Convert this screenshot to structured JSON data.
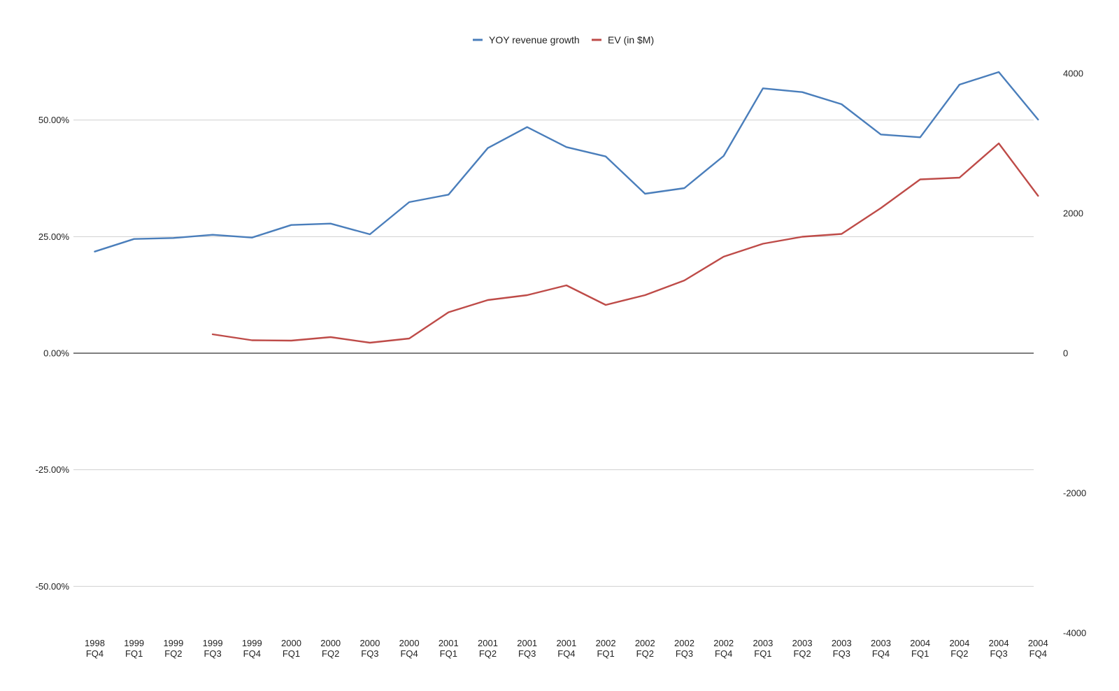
{
  "chart_data": {
    "type": "line",
    "title": "",
    "xlabel": "",
    "ylabel": "",
    "categories": [
      [
        "1998",
        "FQ4"
      ],
      [
        "1999",
        "FQ1"
      ],
      [
        "1999",
        "FQ2"
      ],
      [
        "1999",
        "FQ3"
      ],
      [
        "1999",
        "FQ4"
      ],
      [
        "2000",
        "FQ1"
      ],
      [
        "2000",
        "FQ2"
      ],
      [
        "2000",
        "FQ3"
      ],
      [
        "2000",
        "FQ4"
      ],
      [
        "2001",
        "FQ1"
      ],
      [
        "2001",
        "FQ2"
      ],
      [
        "2001",
        "FQ3"
      ],
      [
        "2001",
        "FQ4"
      ],
      [
        "2002",
        "FQ1"
      ],
      [
        "2002",
        "FQ2"
      ],
      [
        "2002",
        "FQ3"
      ],
      [
        "2002",
        "FQ4"
      ],
      [
        "2003",
        "FQ1"
      ],
      [
        "2003",
        "FQ2"
      ],
      [
        "2003",
        "FQ3"
      ],
      [
        "2003",
        "FQ4"
      ],
      [
        "2004",
        "FQ1"
      ],
      [
        "2004",
        "FQ2"
      ],
      [
        "2004",
        "FQ3"
      ],
      [
        "2004",
        "FQ4"
      ]
    ],
    "y_left": {
      "min": -0.6,
      "max": 0.6,
      "ticks": [
        -0.5,
        -0.25,
        0,
        0.25,
        0.5
      ],
      "tick_labels": [
        "-50.00%",
        "-25.00%",
        "0.00%",
        "25.00%",
        "50.00%"
      ],
      "gridlines": true
    },
    "y_right": {
      "min": -4000,
      "max": 4000,
      "ticks": [
        -4000,
        -2000,
        0,
        2000,
        4000
      ],
      "tick_labels": [
        "-4000",
        "-2000",
        "0",
        "2000",
        "4000"
      ]
    },
    "legend_position": "top-center",
    "series": [
      {
        "name": "YOY revenue growth",
        "axis": "left",
        "color": "#4a7ebb",
        "values": [
          0.218,
          0.245,
          0.247,
          0.254,
          0.248,
          0.275,
          0.278,
          0.255,
          0.324,
          0.34,
          0.44,
          0.485,
          0.442,
          0.422,
          0.342,
          0.354,
          0.423,
          0.568,
          0.56,
          0.534,
          0.469,
          0.463,
          0.576,
          0.603,
          0.501
        ]
      },
      {
        "name": "EV (in $M)",
        "axis": "right",
        "color": "#be4b48",
        "values": [
          null,
          null,
          null,
          270,
          185,
          180,
          230,
          150,
          210,
          585,
          760,
          830,
          970,
          690,
          830,
          1040,
          1380,
          1565,
          1665,
          1705,
          2075,
          2485,
          2510,
          3000,
          2250
        ]
      }
    ]
  }
}
